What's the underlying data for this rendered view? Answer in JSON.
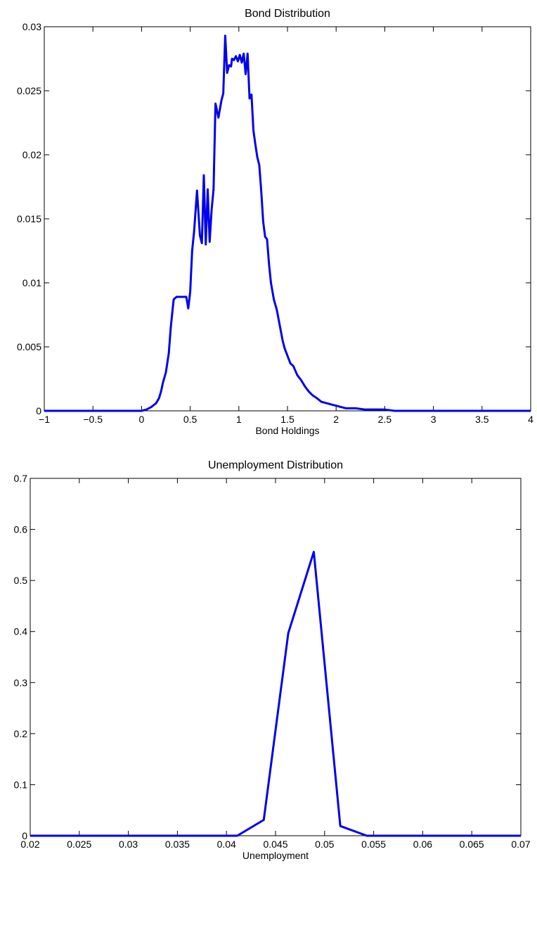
{
  "chart_data": [
    {
      "type": "line",
      "title": "Bond Distribution",
      "xlabel": "Bond Holdings",
      "ylabel": "",
      "xlim": [
        -1,
        4
      ],
      "ylim": [
        0,
        0.03
      ],
      "xticks": [
        -1,
        -0.5,
        0,
        0.5,
        1,
        1.5,
        2,
        2.5,
        3,
        3.5,
        4
      ],
      "xtick_labels": [
        "−1",
        "−0.5",
        "0",
        "0.5",
        "1",
        "1.5",
        "2",
        "2.5",
        "3",
        "3.5",
        "4"
      ],
      "yticks": [
        0,
        0.005,
        0.01,
        0.015,
        0.02,
        0.025,
        0.03
      ],
      "ytick_labels": [
        "0",
        "0.005",
        "0.01",
        "0.015",
        "0.02",
        "0.025",
        "0.03"
      ],
      "grid": false,
      "line_color": "#0000ee",
      "series": [
        {
          "x": [
            -1,
            0,
            0.05,
            0.1,
            0.15,
            0.18,
            0.2,
            0.22,
            0.25,
            0.28,
            0.3,
            0.33,
            0.36,
            0.38,
            0.4,
            0.43,
            0.46,
            0.48,
            0.5,
            0.52,
            0.54,
            0.57,
            0.6,
            0.62,
            0.64,
            0.66,
            0.68,
            0.7,
            0.72,
            0.74,
            0.76,
            0.79,
            0.82,
            0.84,
            0.86,
            0.88,
            0.9,
            0.92,
            0.93,
            0.95,
            0.97,
            0.99,
            1.01,
            1.03,
            1.05,
            1.07,
            1.09,
            1.11,
            1.13,
            1.15,
            1.17,
            1.19,
            1.21,
            1.23,
            1.25,
            1.27,
            1.29,
            1.31,
            1.33,
            1.36,
            1.39,
            1.41,
            1.43,
            1.45,
            1.47,
            1.5,
            1.53,
            1.56,
            1.6,
            1.64,
            1.68,
            1.72,
            1.76,
            1.8,
            1.85,
            1.9,
            1.95,
            2.0,
            2.05,
            2.1,
            2.2,
            2.3,
            2.4,
            2.5,
            2.6,
            2.8,
            3.0,
            3.5,
            4.0
          ],
          "y": [
            0,
            0,
            0.0001,
            0.0003,
            0.0006,
            0.001,
            0.0015,
            0.0022,
            0.003,
            0.0045,
            0.0065,
            0.0087,
            0.0089,
            0.0089,
            0.0089,
            0.0089,
            0.0089,
            0.008,
            0.0093,
            0.0125,
            0.014,
            0.0172,
            0.0137,
            0.0131,
            0.0184,
            0.013,
            0.0173,
            0.0132,
            0.0157,
            0.0173,
            0.024,
            0.0229,
            0.0242,
            0.0248,
            0.0293,
            0.0264,
            0.027,
            0.0269,
            0.0275,
            0.0274,
            0.0277,
            0.0273,
            0.0278,
            0.0272,
            0.0279,
            0.0263,
            0.0279,
            0.0244,
            0.0247,
            0.0219,
            0.0208,
            0.0198,
            0.0192,
            0.0172,
            0.0148,
            0.0136,
            0.0134,
            0.0115,
            0.01,
            0.0087,
            0.0079,
            0.0071,
            0.0063,
            0.0055,
            0.0049,
            0.0043,
            0.0037,
            0.0035,
            0.0028,
            0.0024,
            0.0019,
            0.0015,
            0.0012,
            0.001,
            0.0007,
            0.0006,
            0.0005,
            0.0004,
            0.0003,
            0.0002,
            0.0002,
            0.0001,
            0.0001,
            0.0001,
            0,
            0,
            0,
            0,
            0
          ]
        }
      ]
    },
    {
      "type": "line",
      "title": "Unemployment Distribution",
      "xlabel": "Unemployment",
      "ylabel": "",
      "xlim": [
        0.02,
        0.07
      ],
      "ylim": [
        0,
        0.7
      ],
      "xticks": [
        0.02,
        0.025,
        0.03,
        0.035,
        0.04,
        0.045,
        0.05,
        0.055,
        0.06,
        0.065,
        0.07
      ],
      "xtick_labels": [
        "0.02",
        "0.025",
        "0.03",
        "0.035",
        "0.04",
        "0.045",
        "0.05",
        "0.055",
        "0.06",
        "0.065",
        "0.07"
      ],
      "yticks": [
        0,
        0.1,
        0.2,
        0.3,
        0.4,
        0.5,
        0.6,
        0.7
      ],
      "ytick_labels": [
        "0",
        "0.1",
        "0.2",
        "0.3",
        "0.4",
        "0.5",
        "0.6",
        "0.7"
      ],
      "grid": false,
      "line_color": "#0000ee",
      "series": [
        {
          "x": [
            0.02,
            0.0411,
            0.0438,
            0.0463,
            0.0489,
            0.0516,
            0.0543,
            0.07
          ],
          "y": [
            0,
            0,
            0.031,
            0.397,
            0.556,
            0.019,
            0,
            0
          ]
        }
      ]
    }
  ]
}
